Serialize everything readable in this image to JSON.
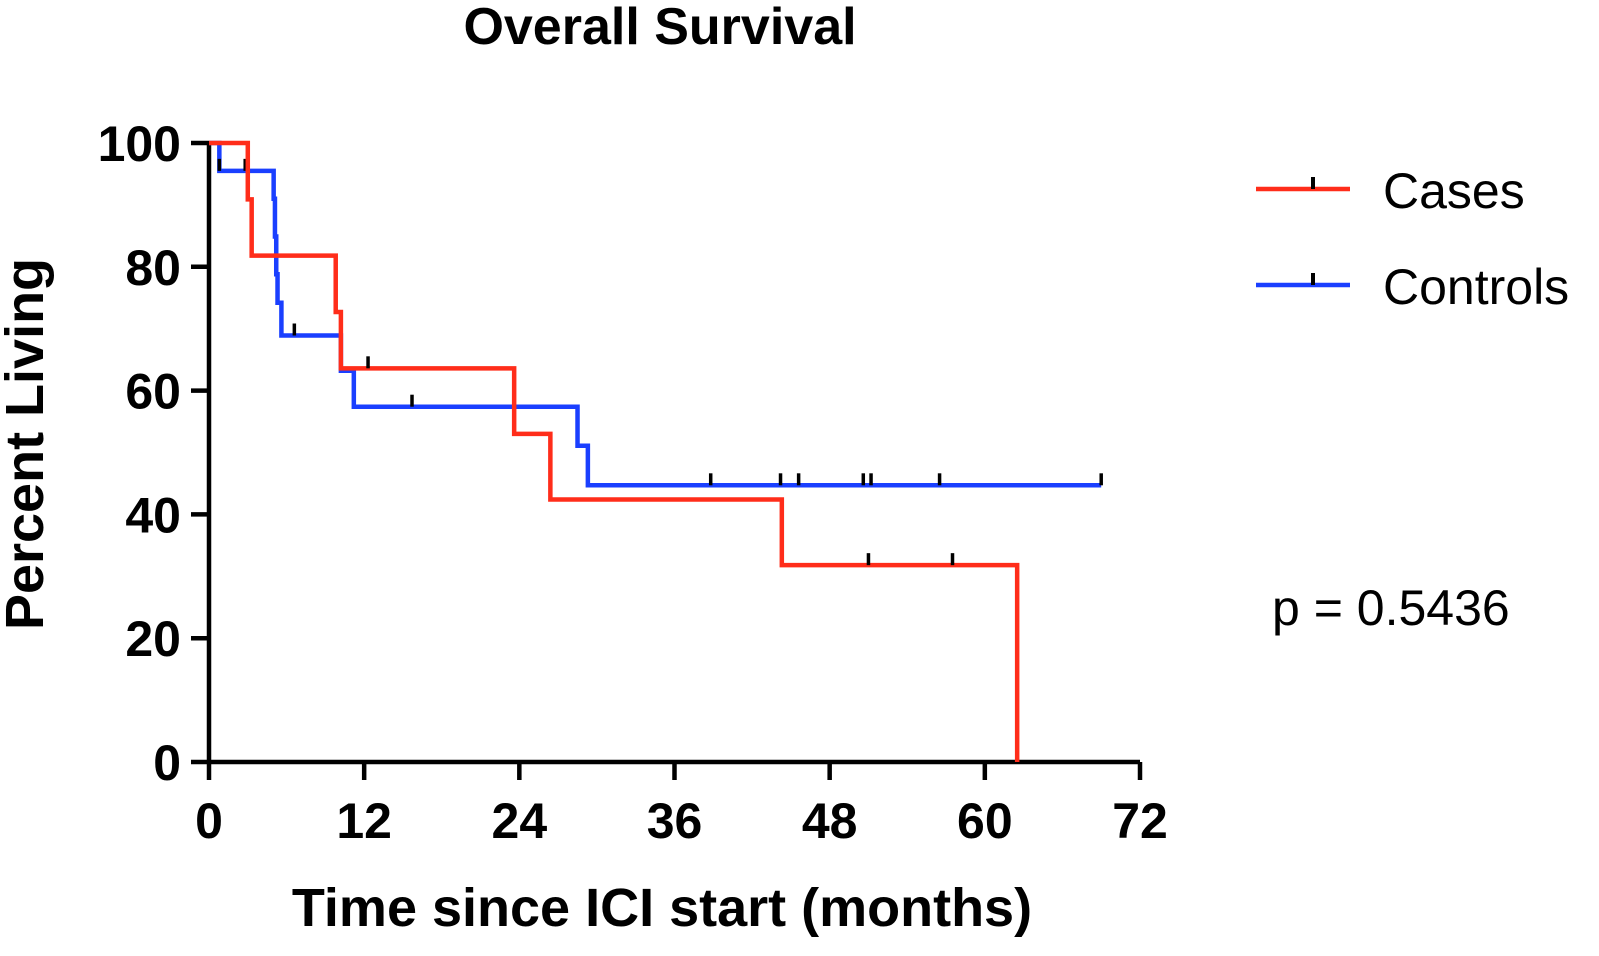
{
  "chart_data": {
    "type": "line",
    "subtype": "kaplan-meier",
    "title": "Overall Survival",
    "xlabel": "Time since ICI start (months)",
    "ylabel": "Percent Living",
    "xlim": [
      0,
      72
    ],
    "ylim": [
      0,
      100
    ],
    "xticks": [
      0,
      12,
      24,
      36,
      48,
      60,
      72
    ],
    "yticks": [
      0,
      20,
      40,
      60,
      80,
      100
    ],
    "grid": false,
    "legend_position": "top-right",
    "annotation": "p = 0.5436",
    "series": [
      {
        "name": "Cases",
        "color": "#ff2d1a",
        "steps": [
          [
            0,
            100
          ],
          [
            3,
            90.9
          ],
          [
            3.3,
            81.8
          ],
          [
            9.8,
            72.7
          ],
          [
            10.2,
            63.6
          ],
          [
            23.6,
            53
          ],
          [
            26.4,
            42.4
          ],
          [
            44.3,
            31.8
          ],
          [
            62.5,
            0
          ]
        ],
        "end": 62.5,
        "censored": [
          [
            12.3,
            63.6
          ],
          [
            51,
            31.8
          ],
          [
            57.5,
            31.8
          ]
        ]
      },
      {
        "name": "Controls",
        "color": "#1a3fff",
        "steps": [
          [
            0,
            100
          ],
          [
            0.8,
            95.5
          ],
          [
            5,
            91
          ],
          [
            5.1,
            84.9
          ],
          [
            5.2,
            78.8
          ],
          [
            5.3,
            74.2
          ],
          [
            5.6,
            68.9
          ],
          [
            10.2,
            63.2
          ],
          [
            11.2,
            57.4
          ],
          [
            28.5,
            51.1
          ],
          [
            29.3,
            44.7
          ]
        ],
        "end": 69,
        "censored": [
          [
            0.8,
            95.5
          ],
          [
            2.8,
            95.5
          ],
          [
            6.6,
            68.9
          ],
          [
            15.7,
            57.4
          ],
          [
            38.8,
            44.7
          ],
          [
            44.2,
            44.7
          ],
          [
            45.6,
            44.7
          ],
          [
            50.6,
            44.7
          ],
          [
            51.2,
            44.7
          ],
          [
            56.5,
            44.7
          ],
          [
            69,
            44.7
          ]
        ]
      }
    ]
  }
}
